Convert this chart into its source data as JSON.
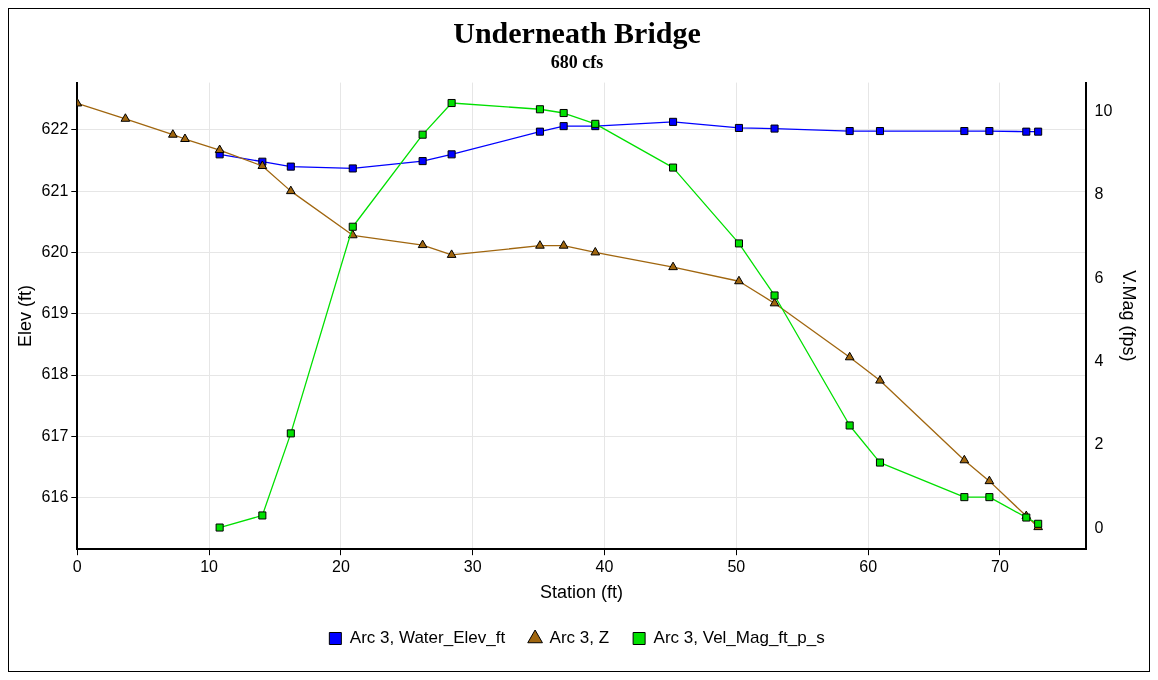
{
  "chart_data": {
    "type": "line",
    "title": "Underneath Bridge",
    "subtitle": "680 cfs",
    "xlabel": "Station (ft)",
    "ylabel": "Elev (ft)",
    "y2label": "V.Mag (fps)",
    "xlim": [
      0,
      76.5
    ],
    "xticks": [
      0,
      10,
      20,
      30,
      40,
      50,
      60,
      70
    ],
    "ylim": [
      615.16,
      622.77
    ],
    "yticks": [
      616,
      617,
      618,
      619,
      620,
      621,
      622
    ],
    "y2lim": [
      -0.5,
      10.7
    ],
    "y2ticks": [
      0,
      2,
      4,
      6,
      8,
      10
    ],
    "grid": true,
    "legend": "bottom",
    "line_style": "solid",
    "series": [
      {
        "name": "Arc 3, Water_Elev_ft",
        "color": "#0000ff",
        "marker": "square",
        "x": [
          10.8,
          14.04,
          16.2,
          20.9,
          26.2,
          28.4,
          35.1,
          36.9,
          39.3,
          45.2,
          50.2,
          52.9,
          58.6,
          60.9,
          67.3,
          69.2,
          72.0,
          72.9
        ],
        "values": [
          621.6,
          621.48,
          621.4,
          621.37,
          621.49,
          621.6,
          621.97,
          622.06,
          622.06,
          622.13,
          622.03,
          622.02,
          621.98,
          621.98,
          621.98,
          621.98,
          621.97,
          621.97
        ]
      },
      {
        "name": "Arc 3, Z",
        "color": "#a0660f",
        "marker": "triangle",
        "x": [
          0,
          3.65,
          7.25,
          8.17,
          10.8,
          14.04,
          16.2,
          20.9,
          26.2,
          28.4,
          35.1,
          36.9,
          39.3,
          45.2,
          50.2,
          52.9,
          58.6,
          60.9,
          67.3,
          69.2,
          72.0,
          72.9
        ],
        "values": [
          622.43,
          622.18,
          621.92,
          621.85,
          621.67,
          621.41,
          621.0,
          620.28,
          620.12,
          619.96,
          620.11,
          620.11,
          620.0,
          619.76,
          619.53,
          619.17,
          618.29,
          617.91,
          616.61,
          616.27,
          615.7,
          615.52
        ]
      },
      {
        "name": "Arc 3, Vel_Mag_ft_p_s",
        "color": "#00e000",
        "marker": "square",
        "axis": "y2",
        "x": [
          10.8,
          14.04,
          16.2,
          20.9,
          26.2,
          28.4,
          35.1,
          36.9,
          39.3,
          45.2,
          50.2,
          52.9,
          58.6,
          60.9,
          67.3,
          69.2,
          72.0,
          72.9
        ],
        "values": [
          0.02,
          0.31,
          2.28,
          7.24,
          9.45,
          10.21,
          10.06,
          9.97,
          9.71,
          8.66,
          6.84,
          5.59,
          2.47,
          1.58,
          0.75,
          0.75,
          0.26,
          0.11
        ]
      }
    ]
  }
}
